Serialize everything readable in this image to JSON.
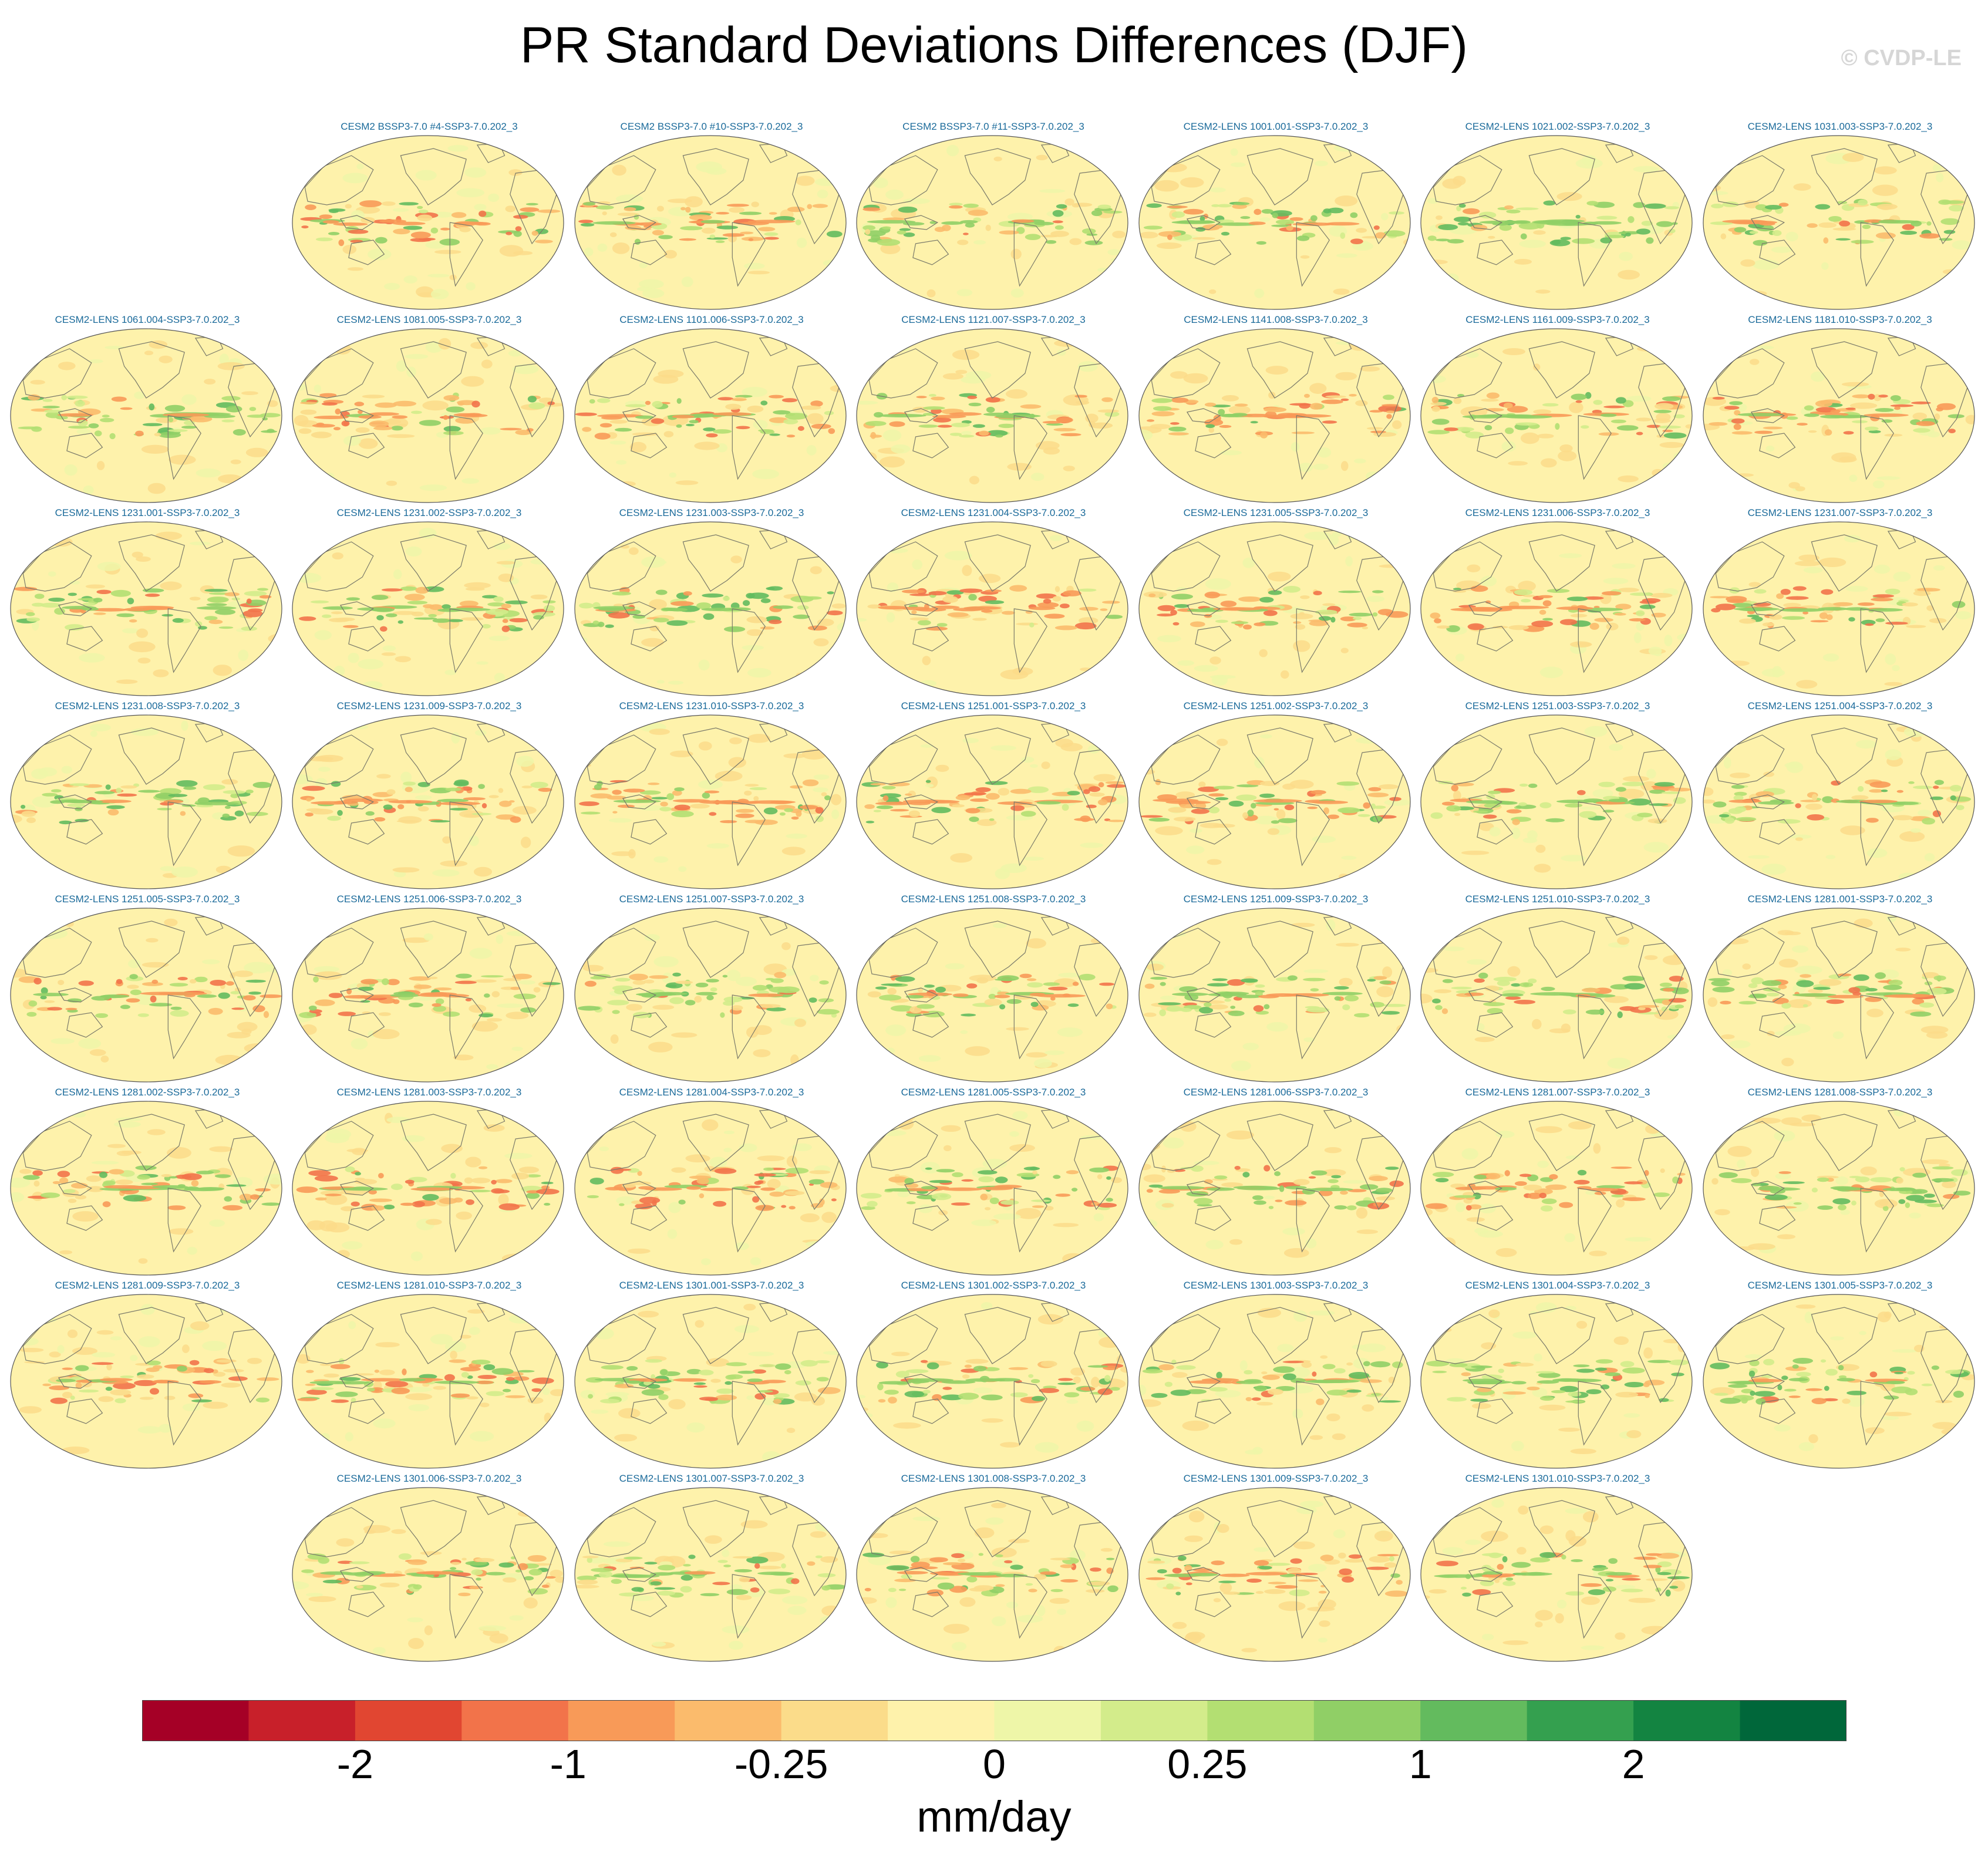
{
  "title": "PR Standard Deviations Differences (DJF)",
  "copyright": "© CVDP-LE",
  "chart_data": {
    "type": "heatmap",
    "title": "PR Standard Deviations Differences (DJF)",
    "projection": "global map, Robinson-like ellipse",
    "grid_rows": [
      [
        "",
        "CESM2 BSSP3-7.0 #4-SSP3-7.0.202_3",
        "CESM2 BSSP3-7.0 #10-SSP3-7.0.202_3",
        "CESM2 BSSP3-7.0 #11-SSP3-7.0.202_3",
        "CESM2-LENS 1001.001-SSP3-7.0.202_3",
        "CESM2-LENS 1021.002-SSP3-7.0.202_3",
        "CESM2-LENS 1031.003-SSP3-7.0.202_3"
      ],
      [
        "CESM2-LENS 1061.004-SSP3-7.0.202_3",
        "CESM2-LENS 1081.005-SSP3-7.0.202_3",
        "CESM2-LENS 1101.006-SSP3-7.0.202_3",
        "CESM2-LENS 1121.007-SSP3-7.0.202_3",
        "CESM2-LENS 1141.008-SSP3-7.0.202_3",
        "CESM2-LENS 1161.009-SSP3-7.0.202_3",
        "CESM2-LENS 1181.010-SSP3-7.0.202_3"
      ],
      [
        "CESM2-LENS 1231.001-SSP3-7.0.202_3",
        "CESM2-LENS 1231.002-SSP3-7.0.202_3",
        "CESM2-LENS 1231.003-SSP3-7.0.202_3",
        "CESM2-LENS 1231.004-SSP3-7.0.202_3",
        "CESM2-LENS 1231.005-SSP3-7.0.202_3",
        "CESM2-LENS 1231.006-SSP3-7.0.202_3",
        "CESM2-LENS 1231.007-SSP3-7.0.202_3"
      ],
      [
        "CESM2-LENS 1231.008-SSP3-7.0.202_3",
        "CESM2-LENS 1231.009-SSP3-7.0.202_3",
        "CESM2-LENS 1231.010-SSP3-7.0.202_3",
        "CESM2-LENS 1251.001-SSP3-7.0.202_3",
        "CESM2-LENS 1251.002-SSP3-7.0.202_3",
        "CESM2-LENS 1251.003-SSP3-7.0.202_3",
        "CESM2-LENS 1251.004-SSP3-7.0.202_3"
      ],
      [
        "CESM2-LENS 1251.005-SSP3-7.0.202_3",
        "CESM2-LENS 1251.006-SSP3-7.0.202_3",
        "CESM2-LENS 1251.007-SSP3-7.0.202_3",
        "CESM2-LENS 1251.008-SSP3-7.0.202_3",
        "CESM2-LENS 1251.009-SSP3-7.0.202_3",
        "CESM2-LENS 1251.010-SSP3-7.0.202_3",
        "CESM2-LENS 1281.001-SSP3-7.0.202_3"
      ],
      [
        "CESM2-LENS 1281.002-SSP3-7.0.202_3",
        "CESM2-LENS 1281.003-SSP3-7.0.202_3",
        "CESM2-LENS 1281.004-SSP3-7.0.202_3",
        "CESM2-LENS 1281.005-SSP3-7.0.202_3",
        "CESM2-LENS 1281.006-SSP3-7.0.202_3",
        "CESM2-LENS 1281.007-SSP3-7.0.202_3",
        "CESM2-LENS 1281.008-SSP3-7.0.202_3"
      ],
      [
        "CESM2-LENS 1281.009-SSP3-7.0.202_3",
        "CESM2-LENS 1281.010-SSP3-7.0.202_3",
        "CESM2-LENS 1301.001-SSP3-7.0.202_3",
        "CESM2-LENS 1301.002-SSP3-7.0.202_3",
        "CESM2-LENS 1301.003-SSP3-7.0.202_3",
        "CESM2-LENS 1301.004-SSP3-7.0.202_3",
        "CESM2-LENS 1301.005-SSP3-7.0.202_3"
      ],
      [
        "",
        "CESM2-LENS 1301.006-SSP3-7.0.202_3",
        "CESM2-LENS 1301.007-SSP3-7.0.202_3",
        "CESM2-LENS 1301.008-SSP3-7.0.202_3",
        "CESM2-LENS 1301.009-SSP3-7.0.202_3",
        "CESM2-LENS 1301.010-SSP3-7.0.202_3",
        ""
      ]
    ],
    "colorbar": {
      "colors": [
        "#a50026",
        "#c8202a",
        "#e14631",
        "#f2734a",
        "#f89a58",
        "#fbbb6c",
        "#fbdc8a",
        "#fef2ab",
        "#eef6a8",
        "#d3ec8b",
        "#b3df72",
        "#90cf66",
        "#63bb5e",
        "#34a04f",
        "#138441",
        "#00673a"
      ],
      "tick_labels": [
        "-2",
        "-1",
        "-0.25",
        "0",
        "0.25",
        "1",
        "2"
      ],
      "units": "mm/day"
    }
  }
}
